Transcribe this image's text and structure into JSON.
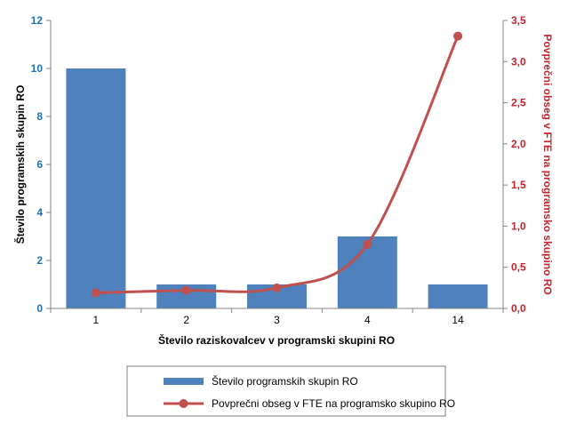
{
  "chart_data": {
    "type": "bar",
    "categories": [
      "1",
      "2",
      "3",
      "4",
      "14"
    ],
    "xlabel": "Število raziskovalcev v programski skupini RO",
    "ylabel": "Število programskih skupin RO",
    "y2label": "Povprečni obseg v FTE na programsko skupino RO",
    "ylim": [
      0,
      12
    ],
    "y_ticks": [
      "0",
      "2",
      "4",
      "6",
      "8",
      "10",
      "12"
    ],
    "y2lim": [
      0,
      3.5
    ],
    "y2_ticks": [
      "0,0",
      "0,5",
      "1,0",
      "1,5",
      "2,0",
      "2,5",
      "3,0",
      "3,5"
    ],
    "grid": false,
    "legend_position": "bottom",
    "series": [
      {
        "name": "Število programskih skupin RO",
        "type": "bar",
        "axis": "left",
        "color": "#4f81bd",
        "values": [
          10,
          1,
          1,
          3,
          1
        ]
      },
      {
        "name": "Povprečni obseg v FTE na programsko skupino RO",
        "type": "line",
        "axis": "right",
        "color": "#c0504d",
        "values": [
          0.19,
          0.22,
          0.25,
          0.78,
          3.31
        ]
      }
    ]
  }
}
